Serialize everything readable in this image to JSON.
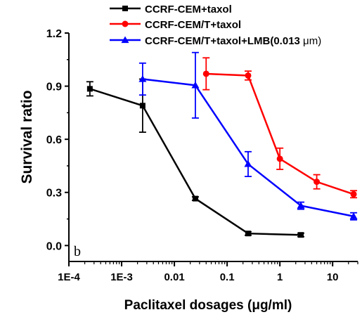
{
  "chart_data": {
    "type": "line",
    "xscale": "log",
    "xlabel": "Paclitaxel dosages (μg/ml)",
    "ylabel": "Survival ratio",
    "xlim": [
      0.0001,
      30
    ],
    "ylim": [
      -0.09,
      1.2
    ],
    "x_ticks": [
      0.0001,
      0.001,
      0.01,
      0.1,
      1,
      10
    ],
    "x_tick_labels": [
      "1E-4",
      "1E-3",
      "0.01",
      "0.1",
      "1",
      "10"
    ],
    "y_ticks": [
      0.0,
      0.3,
      0.6,
      0.9,
      1.2
    ],
    "y_tick_labels": [
      "0.0",
      "0.3",
      "0.6",
      "0.9",
      "1.2"
    ],
    "panel_label": "b",
    "legend": {
      "placement": "top",
      "entries": [
        {
          "text": "CCRF-CEM+taxol",
          "bold_suffix": "",
          "suffix": ""
        },
        {
          "text": "CCRF-CEM/T+taxol",
          "bold_suffix": "",
          "suffix": ""
        },
        {
          "text": "CCRF-CEM/T+taxol+LMB(",
          "bold_suffix": "0.013",
          "suffix": " μm)"
        }
      ]
    },
    "series": [
      {
        "name": "CCRF-CEM+taxol",
        "color": "#000000",
        "marker": "square",
        "x": [
          0.00025,
          0.0025,
          0.025,
          0.25,
          2.5
        ],
        "y": [
          0.885,
          0.79,
          0.265,
          0.068,
          0.06
        ],
        "err": [
          0.04,
          0.15,
          0.01,
          0.01,
          0.01
        ]
      },
      {
        "name": "CCRF-CEM/T+taxol",
        "color": "#ff0000",
        "marker": "circle",
        "x": [
          0.04,
          0.25,
          1.0,
          5.0,
          25.0
        ],
        "y": [
          0.97,
          0.96,
          0.49,
          0.36,
          0.29
        ],
        "err": [
          0.09,
          0.025,
          0.06,
          0.04,
          0.02
        ]
      },
      {
        "name": "CCRF-CEM/T+taxol+LMB(0.013 μm)",
        "color": "#0000ff",
        "marker": "triangle",
        "x": [
          0.0025,
          0.025,
          0.25,
          2.5,
          25.0
        ],
        "y": [
          0.94,
          0.905,
          0.46,
          0.225,
          0.165
        ],
        "err": [
          0.09,
          0.185,
          0.07,
          0.02,
          0.02
        ]
      }
    ],
    "colors": {
      "axis": "#000000"
    }
  }
}
